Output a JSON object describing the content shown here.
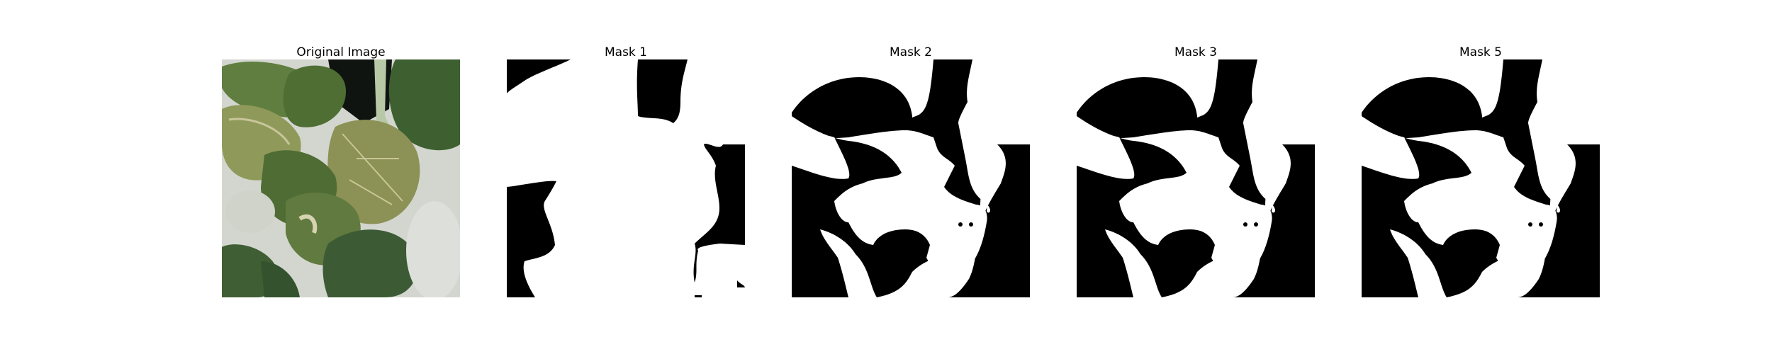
{
  "figure": {
    "panels": [
      {
        "id": "original",
        "title": "Original Image"
      },
      {
        "id": "mask1",
        "title": "Mask 1"
      },
      {
        "id": "mask2",
        "title": "Mask 2"
      },
      {
        "id": "mask3",
        "title": "Mask 3"
      },
      {
        "id": "mask5",
        "title": "Mask 5"
      }
    ]
  },
  "colors": {
    "mask_foreground": "#ffffff",
    "mask_background": "#000000",
    "leaf_dark": "#3f5f2e",
    "leaf_mid": "#5c7f3a",
    "leaf_light": "#8aa05a",
    "leaf_yellow": "#a8a362",
    "tray": "#d6d9d2",
    "shadow": "#0e1210"
  }
}
